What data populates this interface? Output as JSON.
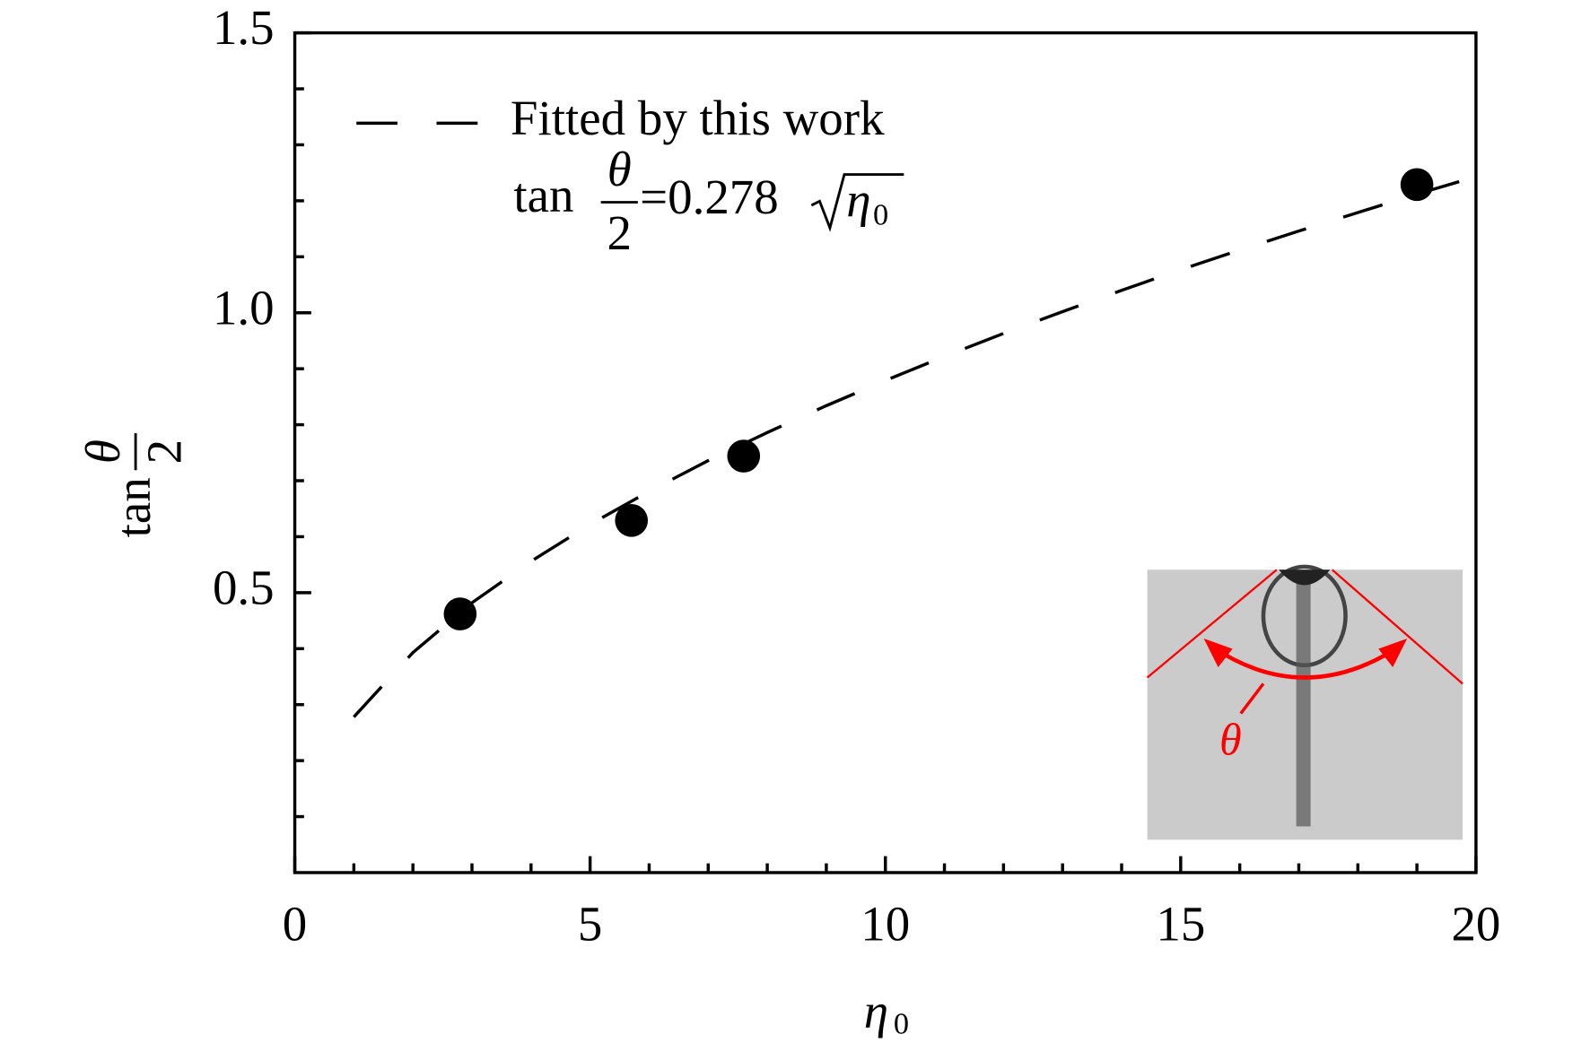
{
  "chart_data": {
    "type": "scatter",
    "xlabel": {
      "symbol": "η",
      "subscript": "0"
    },
    "ylabel": {
      "prefix": "tan",
      "numerator": "θ",
      "denominator": "2"
    },
    "xlim": [
      0,
      20
    ],
    "xticks": [
      0,
      5,
      10,
      15,
      20
    ],
    "xminorticks": [
      1,
      2,
      3,
      4,
      6,
      7,
      8,
      9,
      11,
      12,
      13,
      14,
      16,
      17,
      18,
      19
    ],
    "ylim": [
      0,
      1.5
    ],
    "yticks": [
      {
        "value": 0.5,
        "label": "0.5"
      },
      {
        "value": 1.0,
        "label": "1.0"
      },
      {
        "value": 1.5,
        "label": "1.5"
      }
    ],
    "yminorticks": [
      0.1,
      0.2,
      0.3,
      0.4,
      0.6,
      0.7,
      0.8,
      0.9,
      1.1,
      1.2,
      1.3,
      1.4
    ],
    "series": [
      {
        "kind": "points",
        "color": "#000000",
        "x": [
          2.8,
          5.7,
          7.6,
          19
        ],
        "values": [
          0.462,
          0.629,
          0.744,
          1.229
        ]
      },
      {
        "kind": "dashed-line",
        "name": "Fitted by this work",
        "color": "#000000",
        "x": [
          1,
          2,
          3,
          4,
          5,
          6,
          7,
          8,
          9,
          10,
          11,
          12,
          13,
          14,
          15,
          16,
          17,
          18,
          19,
          20
        ],
        "values": [
          0.278,
          0.393,
          0.482,
          0.556,
          0.622,
          0.681,
          0.736,
          0.786,
          0.834,
          0.879,
          0.922,
          0.963,
          1.002,
          1.04,
          1.077,
          1.112,
          1.146,
          1.179,
          1.212,
          1.243
        ]
      }
    ],
    "equation": {
      "prefix": "tan",
      "numerator": "θ",
      "denominator": "2",
      "rhs": "=0.278",
      "symbol": "η",
      "subscript": "0"
    },
    "inset": {
      "label": "θ"
    }
  }
}
